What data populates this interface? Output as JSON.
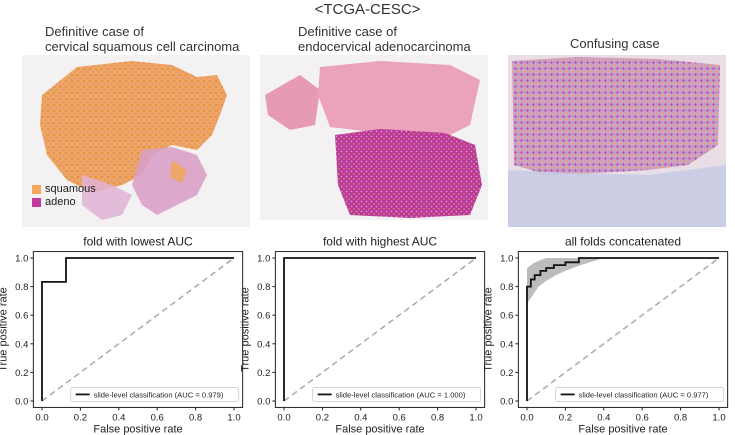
{
  "figure": {
    "title": "<TCGA-CESC>"
  },
  "panels": [
    {
      "header": [
        "Definitive case of",
        "cervical squamous cell carcinoma"
      ]
    },
    {
      "header": [
        "Definitive case of",
        "endocervical adenocarcinoma"
      ]
    },
    {
      "header": [
        "Confusing case"
      ]
    }
  ],
  "slide_legend": {
    "items": [
      {
        "label": "squamous",
        "color": "#f3a85b"
      },
      {
        "label": "adeno",
        "color": "#c23a9c"
      }
    ]
  },
  "colors": {
    "tissue_pink": "#e7a9c0",
    "tissue_light": "#dcc3dc",
    "roc_line": "#111111",
    "chance_line": "#aaaaaa",
    "ci_band": "#b5b5b5"
  },
  "chart_data": [
    {
      "type": "line",
      "title": "fold with lowest AUC",
      "xlabel": "False positive rate",
      "ylabel": "True positive rate",
      "xlim": [
        0.0,
        1.0
      ],
      "ylim": [
        0.0,
        1.0
      ],
      "xticks": [
        "0.0",
        "0.2",
        "0.4",
        "0.6",
        "0.8",
        "1.0"
      ],
      "yticks": [
        "0.0",
        "0.2",
        "0.4",
        "0.6",
        "0.8",
        "1.0"
      ],
      "legend_position": "lower-right",
      "series": [
        {
          "name": "slide-level classification (AUC = 0.979)",
          "x": [
            0.0,
            0.0,
            0.125,
            0.125,
            1.0
          ],
          "y": [
            0.0,
            0.833,
            0.833,
            1.0,
            1.0
          ]
        }
      ],
      "chance_line": true
    },
    {
      "type": "line",
      "title": "fold with highest AUC",
      "xlabel": "False positive rate",
      "ylabel": "True positive rate",
      "xlim": [
        0.0,
        1.0
      ],
      "ylim": [
        0.0,
        1.0
      ],
      "xticks": [
        "0.0",
        "0.2",
        "0.4",
        "0.6",
        "0.8",
        "1.0"
      ],
      "yticks": [
        "0.0",
        "0.2",
        "0.4",
        "0.6",
        "0.8",
        "1.0"
      ],
      "legend_position": "lower-right",
      "series": [
        {
          "name": "slide-level classification (AUC = 1.000)",
          "x": [
            0.0,
            0.0,
            1.0
          ],
          "y": [
            0.0,
            1.0,
            1.0
          ]
        }
      ],
      "chance_line": true
    },
    {
      "type": "line",
      "title": "all folds concatenated",
      "xlabel": "False positive rate",
      "ylabel": "True positive rate",
      "xlim": [
        0.0,
        1.0
      ],
      "ylim": [
        0.0,
        1.0
      ],
      "xticks": [
        "0.0",
        "0.2",
        "0.4",
        "0.6",
        "0.8",
        "1.0"
      ],
      "yticks": [
        "0.0",
        "0.2",
        "0.4",
        "0.6",
        "0.8",
        "1.0"
      ],
      "legend_position": "lower-right",
      "series": [
        {
          "name": "slide-level classification (AUC = 0.977)",
          "x": [
            0.0,
            0.0,
            0.02,
            0.02,
            0.04,
            0.04,
            0.07,
            0.07,
            0.1,
            0.1,
            0.14,
            0.14,
            0.2,
            0.2,
            0.27,
            0.27,
            1.0
          ],
          "y": [
            0.0,
            0.8,
            0.8,
            0.85,
            0.85,
            0.88,
            0.88,
            0.91,
            0.91,
            0.93,
            0.93,
            0.95,
            0.95,
            0.97,
            0.97,
            1.0,
            1.0
          ]
        }
      ],
      "ci_band": {
        "x": [
          0.0,
          0.03,
          0.06,
          0.1,
          0.15,
          0.2,
          0.28,
          0.35,
          0.4
        ],
        "lower": [
          0.68,
          0.74,
          0.8,
          0.84,
          0.88,
          0.91,
          0.95,
          0.98,
          1.0
        ],
        "upper": [
          0.93,
          0.96,
          0.98,
          1.0,
          1.0,
          1.0,
          1.0,
          1.0,
          1.0
        ]
      },
      "chance_line": true
    }
  ]
}
